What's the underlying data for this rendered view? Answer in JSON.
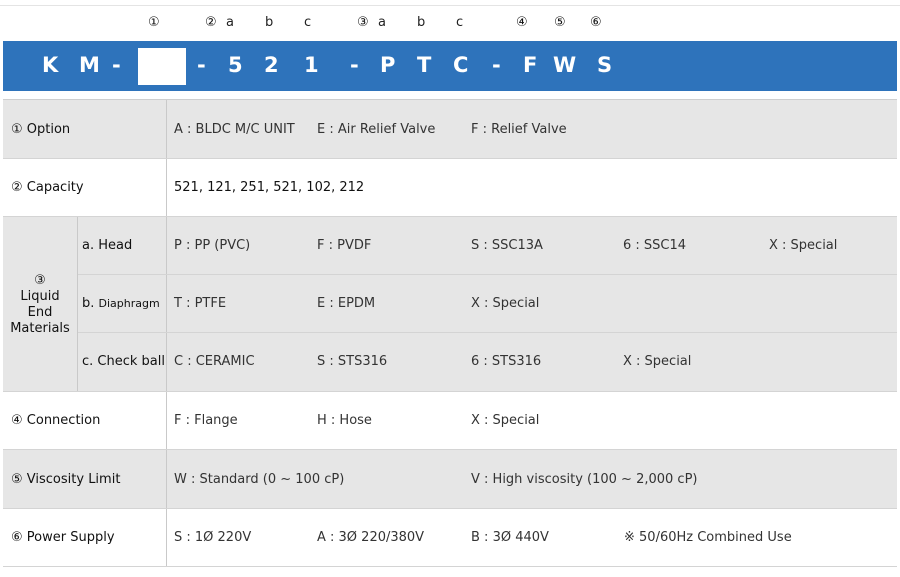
{
  "markers": {
    "m1": "①",
    "m2": "②",
    "m2a": "a",
    "m2b": "b",
    "m2c": "c",
    "m3": "③",
    "m3a": "a",
    "m3b": "b",
    "m3c": "c",
    "m4": "④",
    "m5": "⑤",
    "m6": "⑥"
  },
  "code": [
    "K",
    "M",
    "-",
    "-",
    "5",
    "2",
    "1",
    "-",
    "P",
    "T",
    "C",
    "-",
    "F",
    "W",
    "S"
  ],
  "rows": {
    "option": {
      "label": "① Option",
      "items": [
        "A : BLDC M/C UNIT",
        "E : Air Relief Valve",
        "F : Relief Valve"
      ]
    },
    "capacity": {
      "label": "② Capacity",
      "value": "521, 121, 251, 521, 102, 212"
    },
    "liquid_end": {
      "label_num": "③",
      "label_lines": [
        "Liquid",
        "End",
        "Materials"
      ],
      "head": {
        "label": "a. Head",
        "items": [
          "P : PP (PVC)",
          "F : PVDF",
          "S : SSC13A",
          "6 : SSC14",
          "X : Special"
        ]
      },
      "diaphragm": {
        "label_prefix": "b.",
        "label_name": "Diaphragm",
        "items": [
          "T : PTFE",
          "E : EPDM",
          "X : Special"
        ]
      },
      "check_ball": {
        "label": "c. Check ball",
        "items": [
          "C : CERAMIC",
          "S : STS316",
          "6 : STS316",
          "X : Special"
        ]
      }
    },
    "connection": {
      "label": "④ Connection",
      "items": [
        "F : Flange",
        "H : Hose",
        "X : Special"
      ]
    },
    "viscosity": {
      "label": "⑤ Viscosity Limit",
      "items": [
        "W : Standard (0 ~ 100 cP)",
        "V : High viscosity (100 ~ 2,000 cP)"
      ]
    },
    "power": {
      "label": "⑥ Power Supply",
      "items": [
        "S : 1Ø 220V",
        "A : 3Ø 220/380V",
        "B : 3Ø 440V",
        "※ 50/60Hz Combined Use"
      ]
    }
  }
}
